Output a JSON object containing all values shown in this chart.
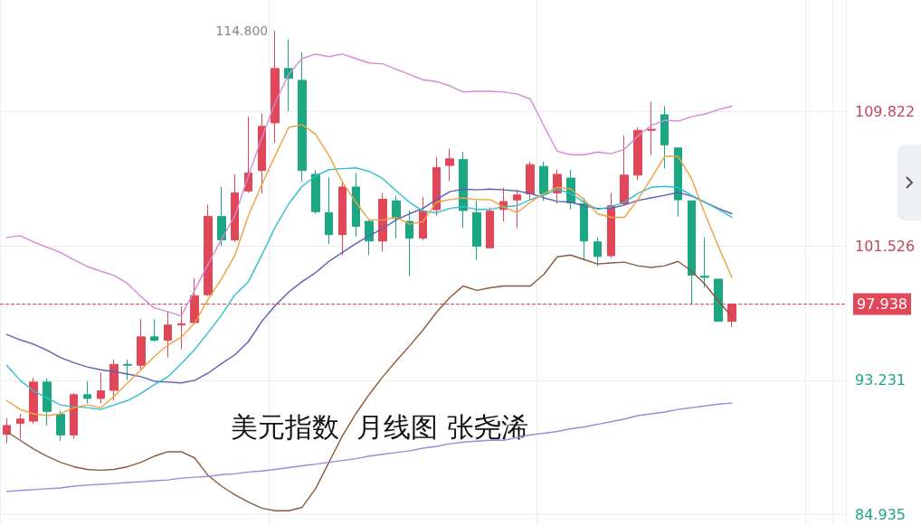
{
  "chart_data": {
    "type": "candlestick",
    "title": "美元指数  月线图 张尧浠",
    "categories": [
      null,
      null,
      null,
      null,
      null,
      null,
      null,
      null,
      null,
      null,
      null,
      null,
      null,
      null,
      null,
      null,
      null,
      null,
      null,
      null,
      null,
      null,
      null,
      null,
      null,
      null,
      null,
      null,
      null,
      null,
      null,
      null,
      null,
      null,
      null,
      null,
      null,
      null,
      null,
      null,
      null,
      null,
      null,
      null,
      null,
      null,
      null,
      null,
      null,
      null,
      null,
      null,
      null,
      null,
      null
    ],
    "ohlc": [
      [
        89.89,
        90.89,
        89.35,
        90.44
      ],
      [
        90.58,
        91.16,
        89.62,
        90.84
      ],
      [
        90.71,
        93.38,
        90.53,
        93.12
      ],
      [
        93.12,
        93.34,
        90.44,
        91.31
      ],
      [
        91.13,
        91.34,
        89.5,
        89.86
      ],
      [
        89.86,
        92.43,
        89.62,
        92.34
      ],
      [
        92.34,
        93.16,
        91.8,
        92.11
      ],
      [
        92.11,
        93.7,
        91.8,
        92.58
      ],
      [
        92.61,
        94.52,
        91.98,
        94.21
      ],
      [
        94.21,
        94.52,
        93.25,
        94.16
      ],
      [
        94.16,
        97.0,
        93.88,
        95.91
      ],
      [
        95.91,
        97.0,
        95.61,
        95.7
      ],
      [
        95.7,
        97.47,
        94.65,
        96.64
      ],
      [
        96.64,
        97.78,
        95.15,
        96.72
      ],
      [
        96.79,
        99.54,
        96.74,
        98.45
      ],
      [
        98.51,
        104.07,
        98.45,
        103.35
      ],
      [
        103.35,
        105.16,
        101.5,
        101.9
      ],
      [
        101.9,
        105.94,
        101.77,
        104.8
      ],
      [
        104.91,
        109.51,
        104.8,
        106.03
      ],
      [
        106.18,
        109.7,
        104.76,
        108.9
      ],
      [
        109.12,
        114.8,
        107.88,
        112.47
      ],
      [
        112.47,
        114.28,
        109.84,
        111.87
      ],
      [
        111.74,
        113.47,
        105.49,
        106.18
      ],
      [
        105.94,
        106.18,
        103.49,
        103.64
      ],
      [
        103.58,
        105.76,
        101.64,
        102.22
      ],
      [
        102.22,
        105.49,
        100.95,
        105.16
      ],
      [
        105.16,
        106.03,
        102.08,
        102.73
      ],
      [
        103.04,
        103.13,
        100.95,
        101.83
      ],
      [
        101.83,
        104.8,
        101.17,
        104.4
      ],
      [
        104.31,
        104.62,
        102.0,
        103.22
      ],
      [
        103.04,
        103.71,
        99.65,
        102.0
      ],
      [
        102.0,
        104.55,
        101.86,
        103.67
      ],
      [
        103.76,
        107.03,
        103.4,
        106.36
      ],
      [
        106.49,
        107.52,
        105.52,
        106.9
      ],
      [
        106.85,
        107.34,
        102.62,
        103.71
      ],
      [
        103.58,
        104.31,
        100.68,
        101.5
      ],
      [
        101.41,
        103.89,
        101.41,
        103.67
      ],
      [
        103.77,
        105.13,
        103.04,
        104.26
      ],
      [
        104.36,
        104.95,
        102.61,
        104.67
      ],
      [
        104.73,
        106.72,
        104.4,
        106.54
      ],
      [
        106.43,
        106.72,
        104.31,
        104.73
      ],
      [
        104.8,
        106.25,
        104.13,
        105.94
      ],
      [
        105.71,
        106.21,
        103.77,
        104.18
      ],
      [
        104.13,
        104.49,
        100.63,
        101.83
      ],
      [
        101.77,
        102.04,
        100.27,
        100.87
      ],
      [
        100.92,
        104.8,
        100.77,
        104.0
      ],
      [
        104.13,
        108.35,
        104.0,
        105.89
      ],
      [
        105.89,
        108.84,
        105.58,
        108.66
      ],
      [
        108.66,
        110.42,
        107.12,
        108.72
      ],
      [
        109.62,
        110.17,
        106.31,
        107.76
      ],
      [
        107.57,
        107.57,
        103.35,
        104.37
      ],
      [
        104.31,
        104.31,
        97.96,
        99.72
      ],
      [
        99.65,
        102.04,
        98.96,
        99.58
      ],
      [
        99.47,
        99.5,
        96.87,
        96.87
      ],
      [
        96.87,
        97.98,
        96.51,
        97.938
      ]
    ],
    "colors": [
      "#e0485a",
      "#e0485a",
      "#e0485a",
      "#1ba784",
      "#1ba784",
      "#e0485a",
      "#1ba784",
      "#e0485a",
      "#e0485a",
      "#1ba784",
      "#e0485a",
      "#1ba784",
      "#e0485a",
      "#e0485a",
      "#e0485a",
      "#e0485a",
      "#1ba784",
      "#e0485a",
      "#e0485a",
      "#e0485a",
      "#e0485a",
      "#1ba784",
      "#1ba784",
      "#1ba784",
      "#1ba784",
      "#e0485a",
      "#1ba784",
      "#1ba784",
      "#e0485a",
      "#1ba784",
      "#1ba784",
      "#e0485a",
      "#e0485a",
      "#e0485a",
      "#1ba784",
      "#1ba784",
      "#e0485a",
      "#e0485a",
      "#e0485a",
      "#e0485a",
      "#1ba784",
      "#e0485a",
      "#1ba784",
      "#1ba784",
      "#1ba784",
      "#e0485a",
      "#e0485a",
      "#e0485a",
      "#e0485a",
      "#1ba784",
      "#1ba784",
      "#1ba784",
      "#1ba784",
      "#1ba784",
      "#e0485a"
    ],
    "series": [
      {
        "type": "line",
        "color": "#d58ad6",
        "values": [
          102.04,
          102.15,
          101.77,
          101.44,
          101.12,
          100.68,
          100.25,
          99.97,
          99.7,
          99.21,
          98.4,
          97.69,
          97.47,
          97.2,
          98.78,
          100.41,
          101.93,
          103.4,
          105.85,
          108.19,
          110.37,
          112.11,
          113.09,
          113.36,
          113.2,
          113.36,
          113.09,
          112.81,
          112.76,
          112.43,
          112.11,
          111.78,
          111.67,
          111.4,
          111.02,
          111.07,
          111.07,
          111.02,
          110.91,
          110.58,
          108.95,
          107.37,
          107.15,
          107.15,
          107.32,
          107.21,
          107.48,
          108.3,
          108.95,
          109.28,
          109.22,
          109.5,
          109.66,
          109.93,
          110.15
        ]
      },
      {
        "type": "line",
        "color": "#8b5a3c",
        "values": [
          90.07,
          89.53,
          88.99,
          88.55,
          88.17,
          87.9,
          87.73,
          87.68,
          87.73,
          87.9,
          88.17,
          88.55,
          88.82,
          88.82,
          88.44,
          87.35,
          86.7,
          86.16,
          85.72,
          85.34,
          85.18,
          85.18,
          85.39,
          86.54,
          88.17,
          89.8,
          91.16,
          92.36,
          93.44,
          94.42,
          95.35,
          96.33,
          97.42,
          98.34,
          99.05,
          98.78,
          98.94,
          99.05,
          99.05,
          99.05,
          99.76,
          100.85,
          100.96,
          100.68,
          100.41,
          100.47,
          100.52,
          100.3,
          100.19,
          100.3,
          100.57,
          99.97,
          99.16,
          98.13,
          97.15
        ]
      },
      {
        "type": "line",
        "color": "#5b5fb5",
        "values": [
          96.06,
          95.73,
          95.46,
          95.08,
          94.64,
          94.32,
          94.05,
          93.88,
          93.77,
          93.61,
          93.45,
          93.17,
          93.12,
          93.07,
          93.23,
          93.67,
          94.26,
          94.81,
          95.62,
          96.87,
          97.85,
          98.67,
          99.32,
          99.87,
          100.57,
          101.12,
          101.66,
          102.15,
          102.59,
          103.13,
          103.51,
          103.84,
          104.38,
          104.87,
          105.03,
          104.98,
          105.03,
          104.98,
          104.92,
          104.76,
          104.49,
          104.27,
          104.22,
          104.0,
          103.84,
          103.84,
          104.05,
          104.33,
          104.49,
          104.65,
          104.82,
          104.6,
          104.22,
          103.84,
          103.51
        ]
      },
      {
        "type": "line",
        "color": "#2fbfcf",
        "values": [
          94.16,
          93.23,
          92.58,
          92.14,
          91.71,
          91.6,
          91.54,
          91.43,
          91.71,
          91.98,
          92.42,
          92.96,
          93.45,
          94.26,
          95.13,
          96.17,
          97.26,
          98.51,
          99.32,
          100.95,
          102.7,
          104.11,
          105.2,
          105.85,
          106.23,
          106.29,
          106.34,
          106.12,
          105.69,
          104.92,
          104.22,
          103.67,
          103.57,
          103.84,
          103.94,
          103.78,
          103.78,
          103.94,
          104.0,
          104.38,
          104.65,
          105.03,
          104.76,
          104.22,
          103.78,
          103.94,
          104.22,
          104.76,
          105.14,
          105.2,
          105.14,
          104.65,
          104.22,
          103.78,
          103.29
        ]
      },
      {
        "type": "line",
        "color": "#f0a040",
        "values": [
          91.98,
          91.43,
          91.16,
          91.05,
          91.16,
          91.54,
          91.71,
          91.54,
          92.25,
          93.07,
          93.88,
          94.7,
          95.4,
          95.89,
          96.76,
          98.23,
          99.49,
          100.95,
          103.4,
          105.31,
          107.1,
          108.84,
          109.01,
          108.41,
          107.1,
          105.47,
          104.22,
          103.13,
          103.13,
          103.29,
          102.86,
          103.02,
          104.22,
          104.38,
          104.49,
          104.38,
          104.38,
          103.94,
          103.57,
          104.22,
          104.76,
          105.14,
          105.03,
          104.38,
          103.51,
          103.29,
          103.29,
          104.38,
          105.69,
          107.05,
          107.05,
          105.69,
          103.51,
          101.5,
          99.59
        ]
      },
      {
        "type": "line",
        "color": "#9a8ad8",
        "values": [
          86.37,
          86.43,
          86.48,
          86.54,
          86.59,
          86.7,
          86.76,
          86.81,
          86.86,
          86.92,
          86.97,
          87.03,
          87.08,
          87.19,
          87.25,
          87.3,
          87.41,
          87.46,
          87.57,
          87.63,
          87.73,
          87.84,
          87.95,
          88.06,
          88.17,
          88.28,
          88.39,
          88.55,
          88.66,
          88.77,
          88.88,
          89.04,
          89.15,
          89.31,
          89.42,
          89.47,
          89.53,
          89.53,
          89.69,
          89.86,
          89.96,
          90.07,
          90.24,
          90.35,
          90.51,
          90.67,
          90.84,
          91.05,
          91.16,
          91.27,
          91.43,
          91.54,
          91.65,
          91.76,
          91.82
        ]
      }
    ],
    "ylim": [
      84.3,
      116.7
    ],
    "yticks": [
      84.935,
      93.231,
      101.526,
      109.822
    ],
    "tick_labels": "y",
    "grid": true,
    "marker": "none",
    "ref_lines": [
      {
        "axis": "y",
        "value": 97.938,
        "label": "97.938",
        "color": "#e0485a",
        "line_style": "dashed"
      }
    ],
    "annotations": [
      "114.800"
    ]
  }
}
